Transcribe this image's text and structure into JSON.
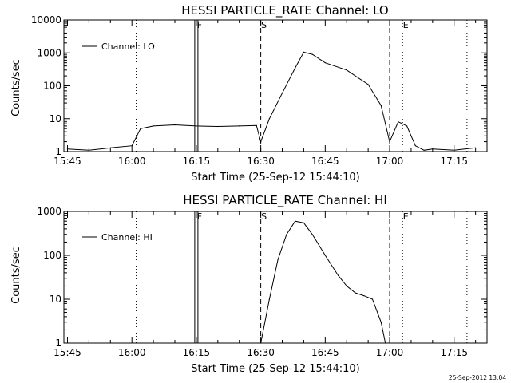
{
  "footer": {
    "timestamp": "25-Sep-2012 13:04"
  },
  "chart_data": [
    {
      "type": "line",
      "title": "HESSI PARTICLE_RATE Channel: LO",
      "xlabel": "Start Time (25-Sep-12 15:44:10)",
      "ylabel": "Counts/sec",
      "y_scale": "log",
      "ylim": [
        1,
        10000
      ],
      "xlim": [
        "15:44:10",
        "17:22:40"
      ],
      "x_ticks": [
        "15:45",
        "16:00",
        "16:15",
        "16:30",
        "16:45",
        "17:00",
        "17:15"
      ],
      "y_ticks": [
        "1",
        "10",
        "100",
        "1000",
        "10000"
      ],
      "legend": {
        "placement": "top-left",
        "entries": [
          "Channel: LO"
        ]
      },
      "markers": [
        {
          "label": "F",
          "x": "16:15",
          "style": "solid-box"
        },
        {
          "label": "S",
          "x": "16:30",
          "style": "dashed"
        },
        {
          "label": "E",
          "x": "17:03",
          "style": "dotted"
        },
        {
          "label": "",
          "x": "16:01",
          "style": "dotted"
        },
        {
          "label": "",
          "x": "17:00",
          "style": "dashed"
        },
        {
          "label": "",
          "x": "17:18",
          "style": "dotted"
        }
      ],
      "series": [
        {
          "name": "Channel: LO",
          "x": [
            "15:45",
            "15:50",
            "15:55",
            "16:00",
            "16:02",
            "16:05",
            "16:10",
            "16:15",
            "16:20",
            "16:25",
            "16:29",
            "16:30",
            "16:32",
            "16:35",
            "16:38",
            "16:40",
            "16:42",
            "16:45",
            "16:50",
            "16:55",
            "16:58",
            "17:00",
            "17:02",
            "17:04",
            "17:06",
            "17:08",
            "17:10",
            "17:15",
            "17:20"
          ],
          "values": [
            1.2,
            1.1,
            1.3,
            1.5,
            5,
            6,
            6.5,
            6,
            5.8,
            6,
            6.2,
            2,
            10,
            60,
            350,
            1050,
            900,
            500,
            300,
            110,
            25,
            2,
            8,
            6,
            1.5,
            1.1,
            1.2,
            1.1,
            1.3
          ]
        }
      ]
    },
    {
      "type": "line",
      "title": "HESSI PARTICLE_RATE Channel: HI",
      "xlabel": "Start Time (25-Sep-12 15:44:10)",
      "ylabel": "Counts/sec",
      "y_scale": "log",
      "ylim": [
        1,
        1000
      ],
      "xlim": [
        "15:44:10",
        "17:22:40"
      ],
      "x_ticks": [
        "15:45",
        "16:00",
        "16:15",
        "16:30",
        "16:45",
        "17:00",
        "17:15"
      ],
      "y_ticks": [
        "1",
        "10",
        "100",
        "1000"
      ],
      "legend": {
        "placement": "top-left",
        "entries": [
          "Channel: HI"
        ]
      },
      "markers": [
        {
          "label": "F",
          "x": "16:15",
          "style": "solid-box"
        },
        {
          "label": "S",
          "x": "16:30",
          "style": "dashed"
        },
        {
          "label": "E",
          "x": "17:03",
          "style": "dotted"
        },
        {
          "label": "",
          "x": "16:01",
          "style": "dotted"
        },
        {
          "label": "",
          "x": "17:00",
          "style": "dashed"
        },
        {
          "label": "",
          "x": "17:18",
          "style": "dotted"
        }
      ],
      "series": [
        {
          "name": "Channel: HI",
          "x": [
            "16:30",
            "16:32",
            "16:34",
            "16:36",
            "16:38",
            "16:40",
            "16:42",
            "16:45",
            "16:48",
            "16:50",
            "16:52",
            "16:54",
            "16:56",
            "16:58",
            "16:59"
          ],
          "values": [
            1,
            10,
            80,
            300,
            600,
            550,
            300,
            100,
            35,
            20,
            14,
            12,
            10,
            3,
            1
          ]
        }
      ]
    }
  ]
}
